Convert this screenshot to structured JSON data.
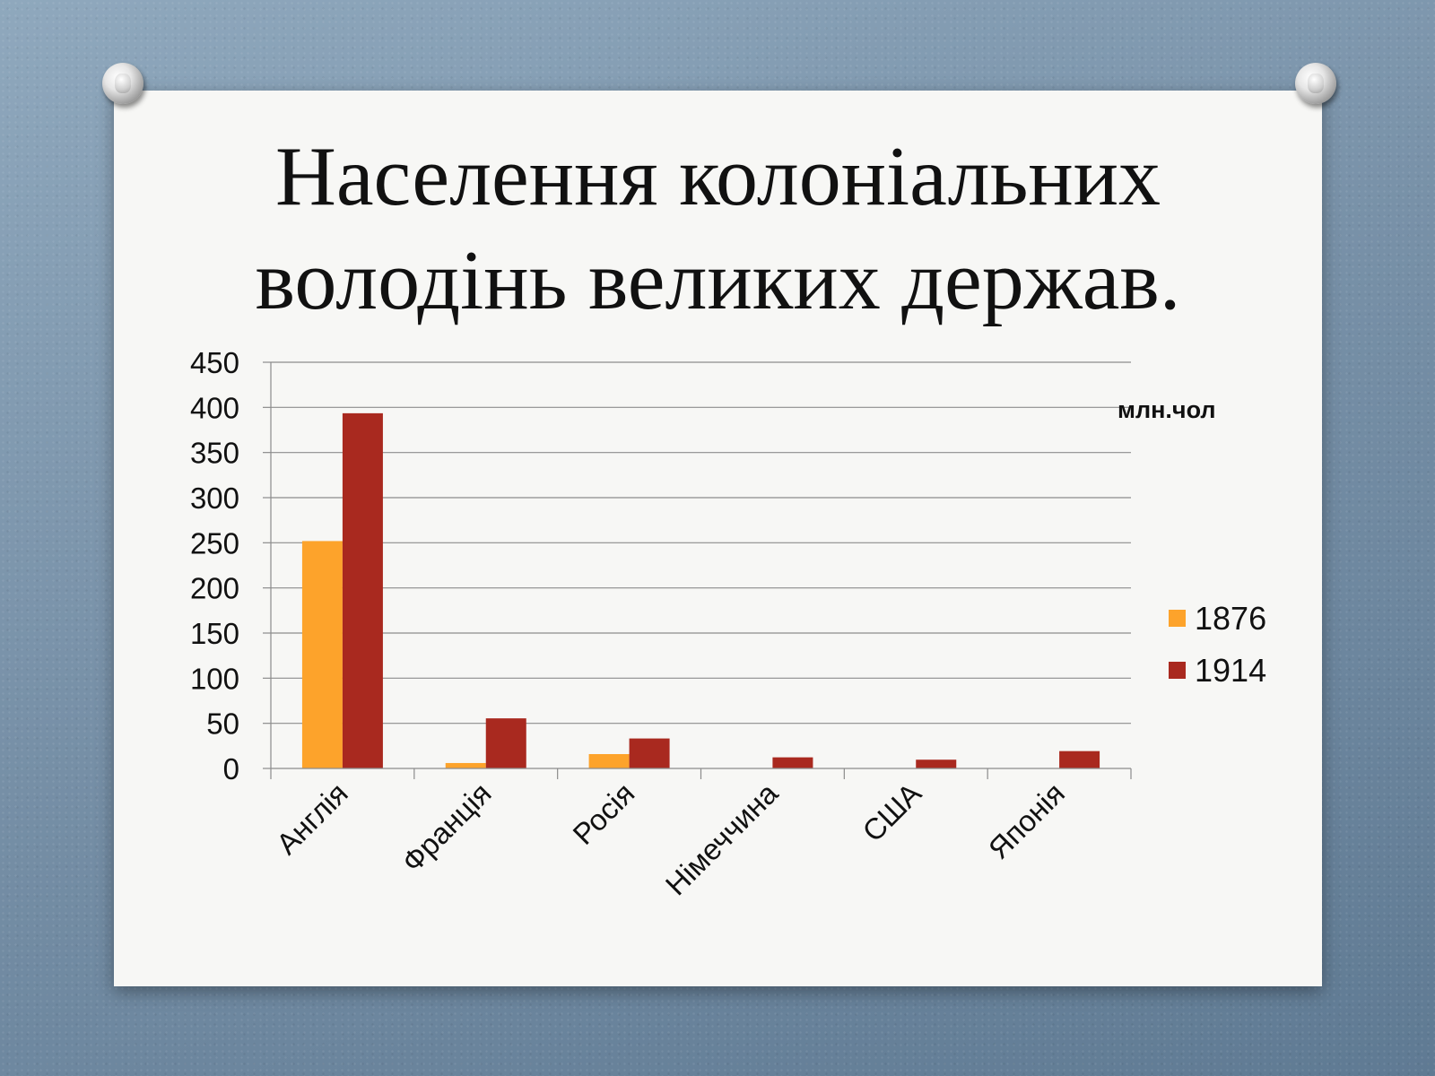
{
  "slide": {
    "title_line1": "Населення колоніальних",
    "title_line2": "володінь великих держав."
  },
  "chart_data": {
    "type": "bar",
    "unit_label": "млн.чол",
    "categories": [
      "Англія",
      "Франція",
      "Росія",
      "Німеччина",
      "США",
      "Японія"
    ],
    "series": [
      {
        "name": "1876",
        "color": "#fda32b",
        "values": [
          251.9,
          6.0,
          15.9,
          0,
          0,
          0
        ]
      },
      {
        "name": "1914",
        "color": "#a9291f",
        "values": [
          393.5,
          55.5,
          33.2,
          12.3,
          9.7,
          19.2
        ]
      }
    ],
    "ylim": [
      0,
      450
    ],
    "yticks": [
      0,
      50,
      100,
      150,
      200,
      250,
      300,
      350,
      400,
      450
    ],
    "grid": true,
    "legend": "right"
  }
}
